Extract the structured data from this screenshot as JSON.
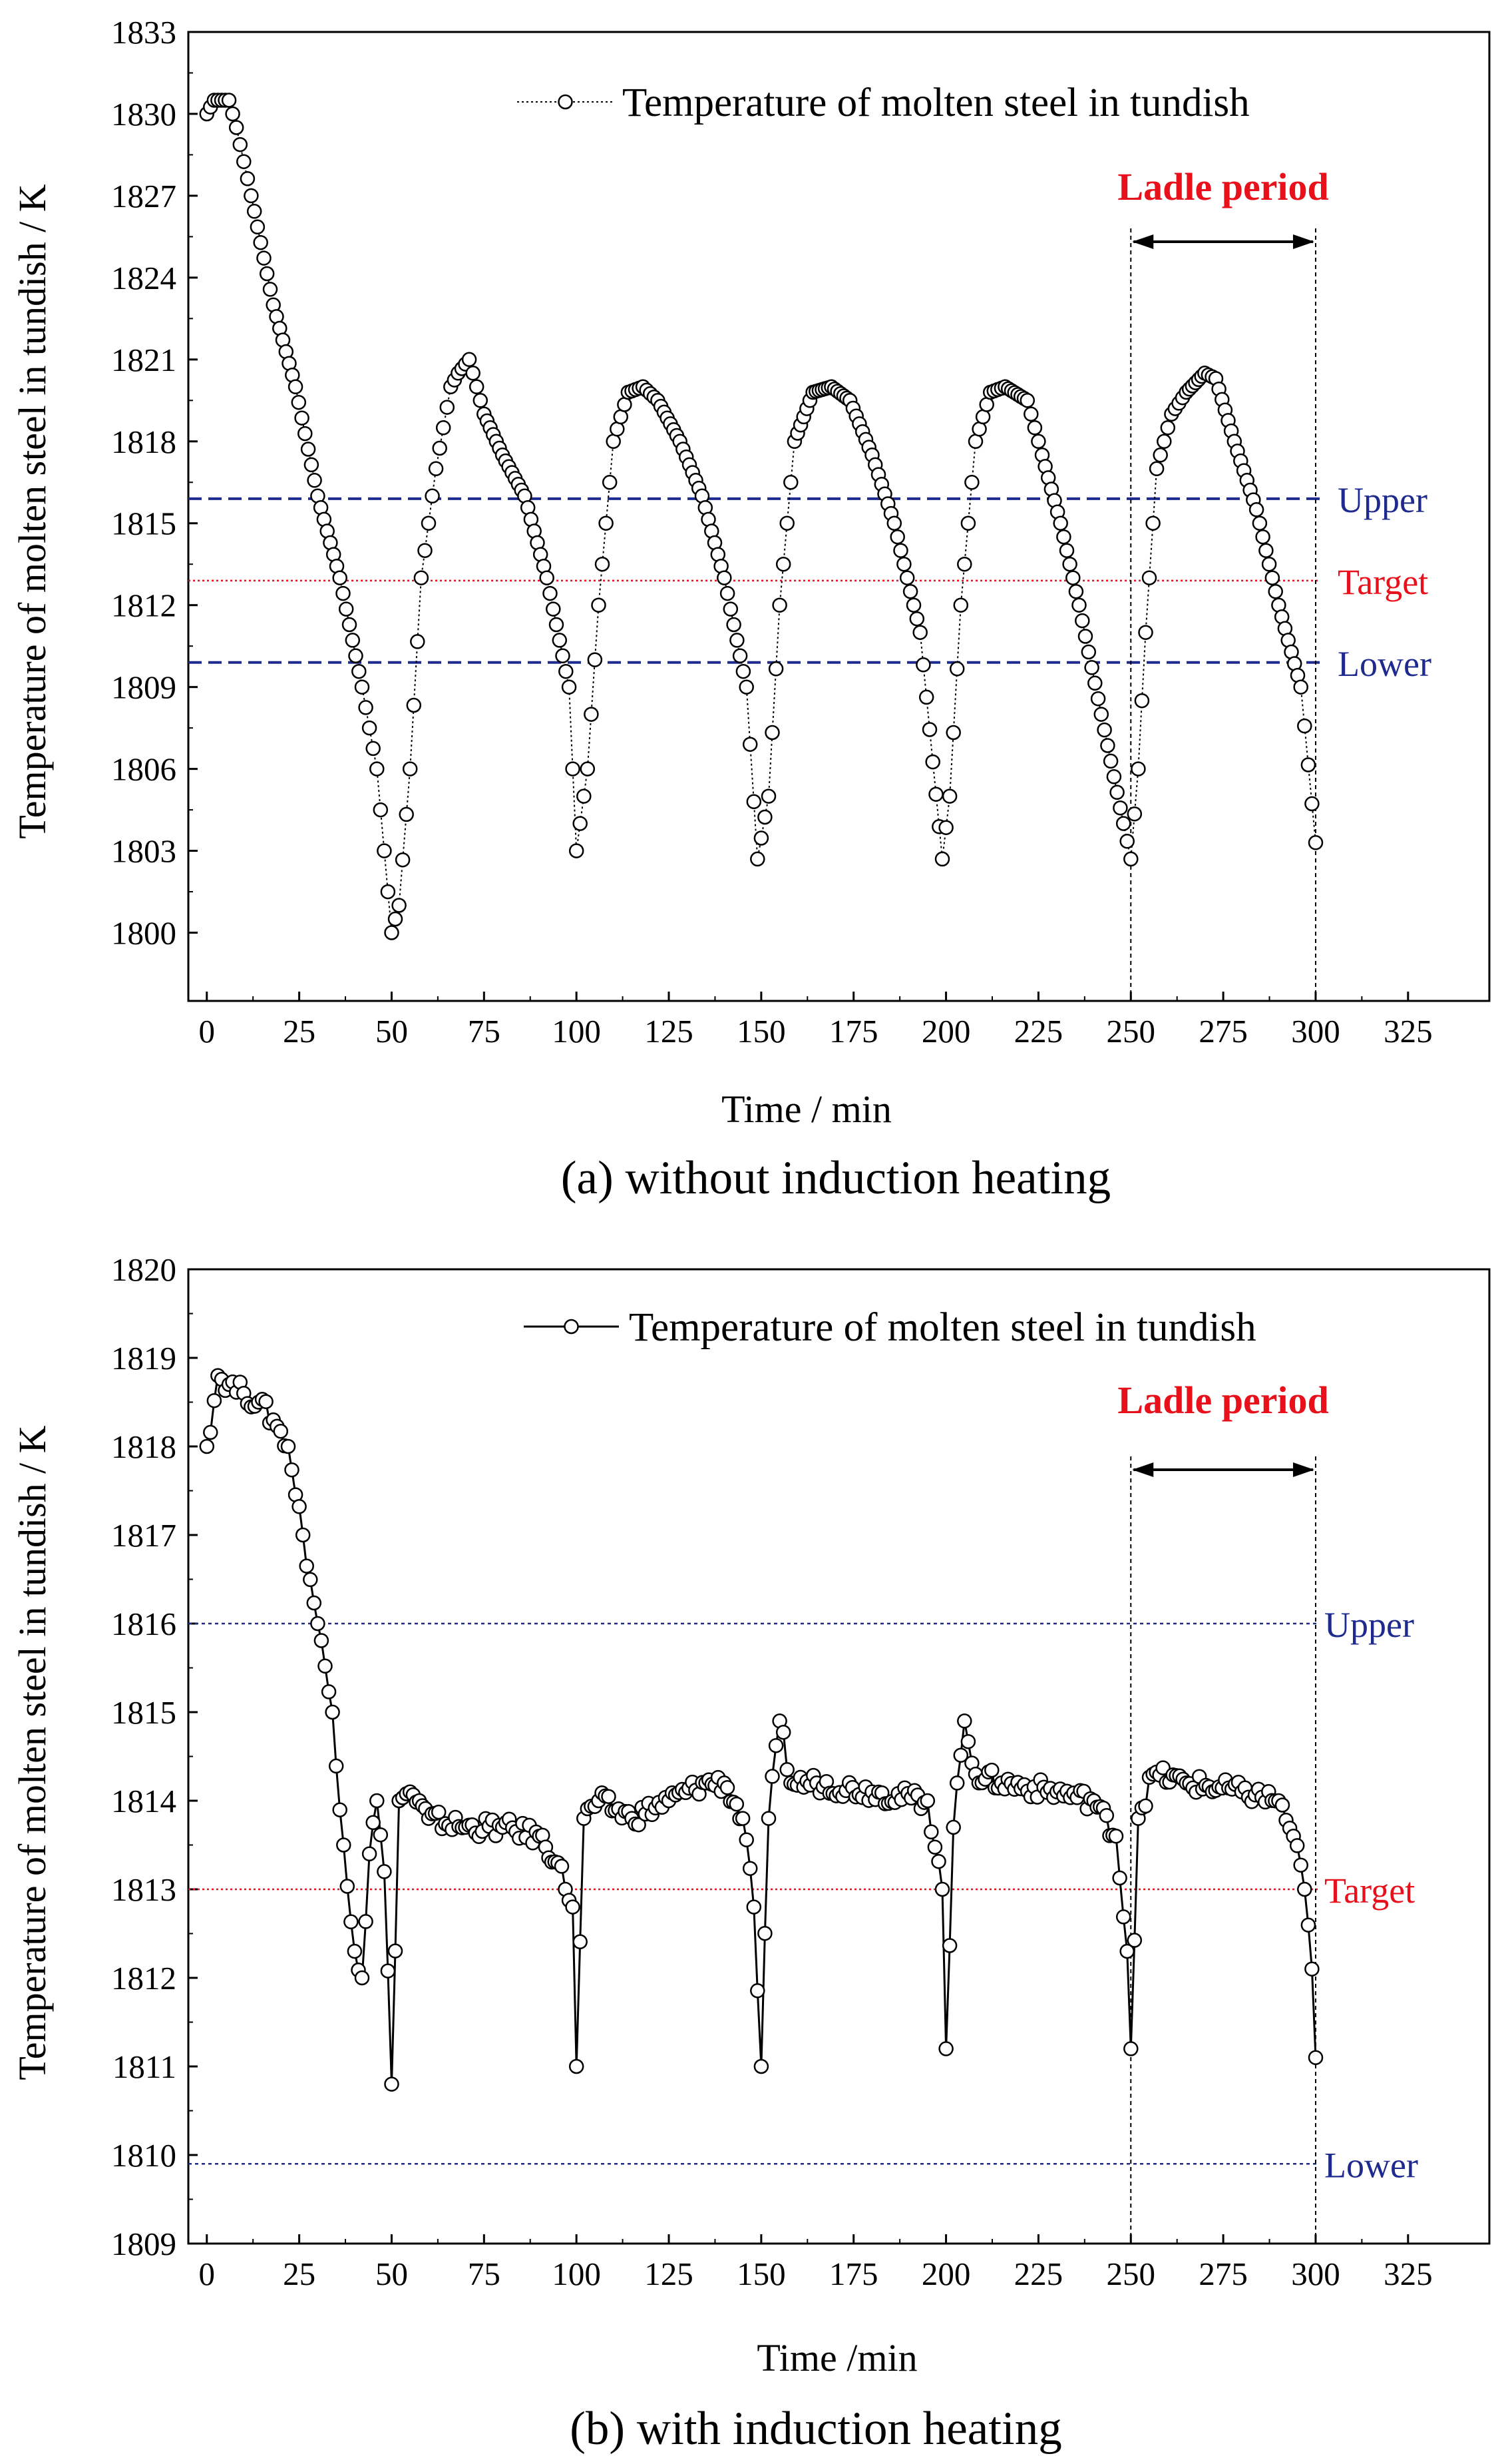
{
  "colors": {
    "limit": "#1f2a8f",
    "target": "#e8101b",
    "ladle_label": "#e8101b"
  },
  "chart_data": [
    {
      "type": "line",
      "caption": "(a) without induction heating",
      "xlabel": "Time / min",
      "ylabel": "Temperature of molten steel in tundish / K",
      "xlim": [
        -5,
        347
      ],
      "ylim": [
        1797.5,
        1833
      ],
      "xticks": [
        0,
        25,
        50,
        75,
        100,
        125,
        150,
        175,
        200,
        225,
        250,
        275,
        300,
        325
      ],
      "yticks": [
        1800,
        1803,
        1806,
        1809,
        1812,
        1815,
        1818,
        1821,
        1824,
        1827,
        1830,
        1833
      ],
      "legend": "Temperature of molten steel in tundish",
      "line_style": "dotted",
      "series_keypoints": {
        "x": [
          0,
          2,
          6,
          8,
          12,
          18,
          24,
          30,
          36,
          42,
          46,
          50,
          52,
          55,
          58,
          62,
          66,
          68,
          71,
          75,
          80,
          86,
          92,
          98,
          100,
          103,
          106,
          110,
          114,
          118,
          122,
          128,
          134,
          140,
          146,
          149,
          152,
          155,
          159,
          164,
          169,
          174,
          180,
          186,
          193,
          199,
          201,
          204,
          208,
          212,
          216,
          222,
          226,
          231,
          236,
          242,
          248,
          250,
          252,
          254,
          257,
          261,
          265,
          270,
          273,
          278,
          284,
          290,
          296,
          300
        ],
        "y": [
          1830,
          1830.5,
          1830.5,
          1829.5,
          1827,
          1823,
          1820,
          1816,
          1813,
          1809,
          1806,
          1800,
          1801,
          1806,
          1813,
          1817,
          1820,
          1820.5,
          1821,
          1819,
          1817.5,
          1816,
          1813,
          1809,
          1803,
          1806,
          1812,
          1818,
          1819.8,
          1820,
          1819.5,
          1818,
          1816,
          1813,
          1809,
          1802.7,
          1805,
          1812,
          1818,
          1819.8,
          1820,
          1819.5,
          1817.5,
          1815,
          1811,
          1802.7,
          1805,
          1812,
          1818,
          1819.8,
          1820,
          1819.5,
          1817.5,
          1815,
          1812,
          1808,
          1804,
          1802.7,
          1806,
          1811,
          1817,
          1819,
          1819.8,
          1820.5,
          1820.3,
          1818,
          1815.5,
          1812,
          1809,
          1803.3
        ]
      },
      "hlines": [
        {
          "name": "Upper",
          "y": 1815.9,
          "style": "dashed"
        },
        {
          "name": "Target",
          "y": 1812.9,
          "style": "dotted"
        },
        {
          "name": "Lower",
          "y": 1809.9,
          "style": "dashed"
        }
      ],
      "ladle_period": {
        "label": "Ladle period",
        "x_start": 250,
        "x_end": 300
      }
    },
    {
      "type": "line",
      "caption": "(b) with induction heating",
      "xlabel": "Time /min",
      "ylabel": "Temperature of molten steel in tundish / K",
      "xlim": [
        -5,
        347
      ],
      "ylim": [
        1809,
        1820
      ],
      "xticks": [
        0,
        25,
        50,
        75,
        100,
        125,
        150,
        175,
        200,
        225,
        250,
        275,
        300,
        325
      ],
      "yticks": [
        1809,
        1810,
        1811,
        1812,
        1813,
        1814,
        1815,
        1816,
        1817,
        1818,
        1819,
        1820
      ],
      "legend": "Temperature of molten steel in tundish",
      "line_style": "solid",
      "series_keypoints": {
        "x": [
          0,
          3,
          6,
          10,
          14,
          18,
          22,
          26,
          30,
          34,
          37,
          40,
          42,
          44,
          46,
          48,
          50,
          52,
          55,
          60,
          70,
          80,
          90,
          95,
          99,
          100,
          102,
          106,
          115,
          125,
          135,
          140,
          145,
          148,
          150,
          152,
          155,
          158,
          165,
          180,
          195,
          199,
          200,
          202,
          205,
          208,
          215,
          230,
          240,
          246,
          249,
          250,
          252,
          256,
          265,
          280,
          290,
          294,
          297,
          299,
          300
        ],
        "y": [
          1818,
          1818.8,
          1818.7,
          1818.6,
          1818.5,
          1818.3,
          1818,
          1817,
          1816,
          1815,
          1813.5,
          1812.3,
          1812,
          1813.4,
          1814,
          1813.2,
          1810.8,
          1814,
          1814.1,
          1813.8,
          1813.7,
          1813.7,
          1813.6,
          1813.3,
          1812.8,
          1811,
          1813.8,
          1814,
          1813.8,
          1814,
          1814.2,
          1814.2,
          1813.8,
          1812.8,
          1811,
          1813.8,
          1814.9,
          1814.2,
          1814.2,
          1814.1,
          1814,
          1813,
          1811.2,
          1813.7,
          1814.9,
          1814.3,
          1814.2,
          1814.1,
          1814,
          1813.6,
          1812.3,
          1811.2,
          1813.8,
          1814.3,
          1814.2,
          1814.1,
          1814,
          1813.6,
          1813,
          1812.1,
          1811.1
        ]
      },
      "hlines": [
        {
          "name": "Upper",
          "y": 1816,
          "style": "dotted"
        },
        {
          "name": "Target",
          "y": 1813,
          "style": "dotted"
        },
        {
          "name": "Lower",
          "y": 1809.9,
          "style": "dotted"
        }
      ],
      "ladle_period": {
        "label": "Ladle period",
        "x_start": 250,
        "x_end": 300
      }
    }
  ]
}
